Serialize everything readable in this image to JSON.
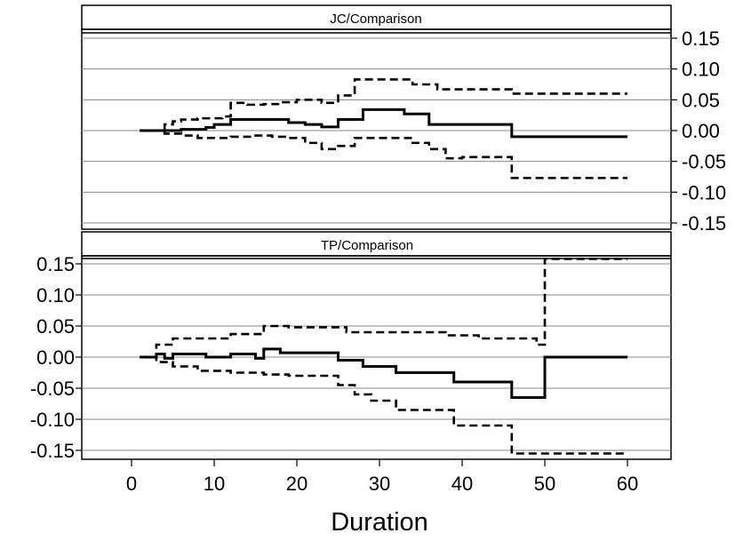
{
  "chart_data": [
    {
      "type": "line",
      "title": "JC/Comparison",
      "xlabel": "Duration",
      "ylabel": "",
      "xlim": [
        -5,
        65
      ],
      "ylim": [
        -0.155,
        0.155
      ],
      "yticks": [
        "0.15",
        "0.10",
        "0.05",
        "0.00",
        "-0.05",
        "-0.10",
        "-0.15"
      ],
      "ytick_values": [
        0.15,
        0.1,
        0.05,
        0.0,
        -0.05,
        -0.1,
        -0.15
      ],
      "y_axis_side": "right",
      "grid": true,
      "series": [
        {
          "role": "estimate",
          "style": "solid",
          "x": [
            1,
            4,
            6,
            9,
            10,
            12,
            19,
            21,
            23,
            25,
            28,
            33,
            36,
            46,
            60
          ],
          "y": [
            0.0,
            0.0,
            0.002,
            0.005,
            0.01,
            0.018,
            0.013,
            0.01,
            0.006,
            0.018,
            0.034,
            0.027,
            0.01,
            -0.01,
            -0.01
          ]
        },
        {
          "role": "upper",
          "style": "dashed",
          "x": [
            1,
            4,
            5,
            6,
            8,
            11,
            12,
            14,
            16,
            18,
            20,
            23,
            25,
            27,
            34,
            37,
            46,
            60
          ],
          "y": [
            0.0,
            0.01,
            0.015,
            0.018,
            0.02,
            0.023,
            0.045,
            0.042,
            0.043,
            0.046,
            0.05,
            0.045,
            0.057,
            0.083,
            0.075,
            0.067,
            0.06,
            0.06
          ]
        },
        {
          "role": "lower",
          "style": "dashed",
          "x": [
            1,
            4,
            6,
            8,
            10,
            12,
            15,
            17,
            19,
            21,
            23,
            25,
            27,
            29,
            34,
            36,
            38,
            40,
            46,
            60
          ],
          "y": [
            0.0,
            -0.005,
            -0.008,
            -0.012,
            -0.012,
            -0.01,
            -0.008,
            -0.01,
            -0.012,
            -0.02,
            -0.03,
            -0.025,
            -0.012,
            -0.012,
            -0.02,
            -0.03,
            -0.045,
            -0.043,
            -0.077,
            -0.077
          ]
        }
      ]
    },
    {
      "type": "line",
      "title": "TP/Comparison",
      "xlabel": "Duration",
      "ylabel": "",
      "xlim": [
        -5,
        65
      ],
      "ylim": [
        -0.155,
        0.155
      ],
      "xticks": [
        "0",
        "10",
        "20",
        "30",
        "40",
        "50",
        "60"
      ],
      "xtick_values": [
        0,
        10,
        20,
        30,
        40,
        50,
        60
      ],
      "yticks": [
        "0.15",
        "0.10",
        "0.05",
        "0.00",
        "-0.05",
        "-0.10",
        "-0.15"
      ],
      "ytick_values": [
        0.15,
        0.1,
        0.05,
        0.0,
        -0.05,
        -0.1,
        -0.15
      ],
      "y_axis_side": "left",
      "grid": true,
      "series": [
        {
          "role": "estimate",
          "style": "solid",
          "x": [
            1,
            3,
            4,
            5,
            9,
            12,
            15,
            16,
            18,
            25,
            28,
            32,
            39,
            46,
            50,
            60
          ],
          "y": [
            0.0,
            0.005,
            -0.002,
            0.005,
            0.0,
            0.005,
            -0.002,
            0.013,
            0.007,
            -0.005,
            -0.015,
            -0.025,
            -0.04,
            -0.065,
            0.0,
            0.0
          ]
        },
        {
          "role": "upper",
          "style": "dashed",
          "x": [
            1,
            3,
            5,
            9,
            12,
            16,
            19,
            26,
            33,
            38,
            42,
            49,
            50,
            60
          ],
          "y": [
            0.0,
            0.02,
            0.03,
            0.03,
            0.037,
            0.05,
            0.048,
            0.04,
            0.04,
            0.035,
            0.03,
            0.02,
            0.158,
            0.158
          ]
        },
        {
          "role": "lower",
          "style": "dashed",
          "x": [
            1,
            3,
            5,
            8,
            12,
            16,
            19,
            25,
            27,
            29,
            32,
            35,
            39,
            46,
            60
          ],
          "y": [
            0.0,
            -0.008,
            -0.015,
            -0.022,
            -0.025,
            -0.028,
            -0.03,
            -0.045,
            -0.06,
            -0.07,
            -0.085,
            -0.085,
            -0.11,
            -0.155,
            -0.155
          ]
        }
      ]
    }
  ]
}
